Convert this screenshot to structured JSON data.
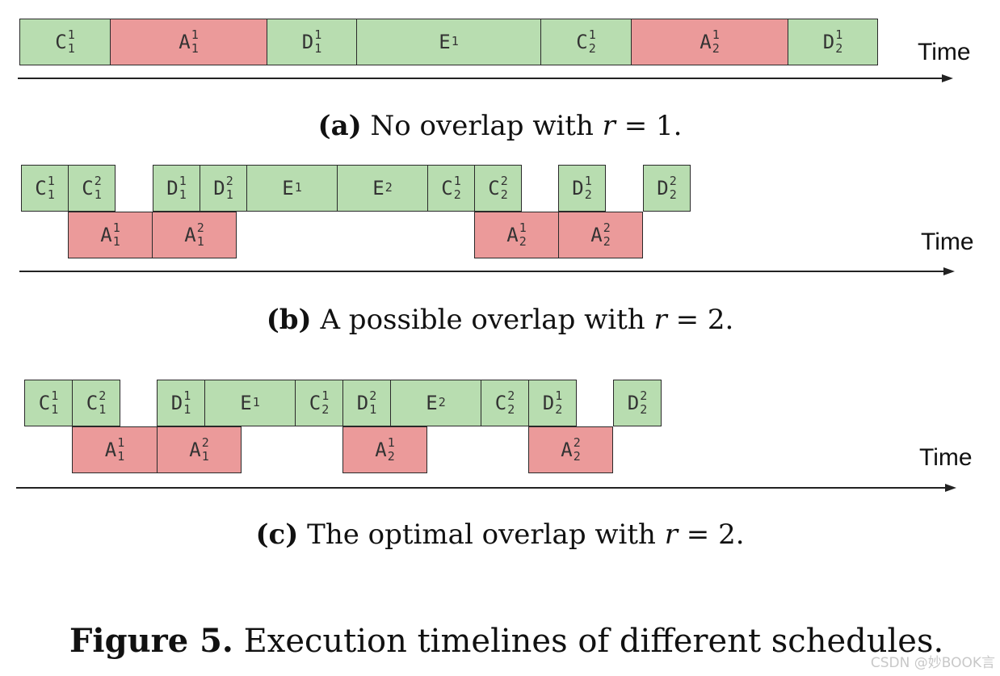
{
  "time_label": "Time",
  "panels": [
    {
      "id": "a",
      "caption": {
        "tag": "(a)",
        "text_before": " No overlap with ",
        "var": "r",
        "text_after": " = 1."
      },
      "blocks": [
        {
          "kind": "C",
          "sup": "1",
          "sub": "1",
          "color": "green"
        },
        {
          "kind": "A",
          "sup": "1",
          "sub": "1",
          "color": "red"
        },
        {
          "kind": "D",
          "sup": "1",
          "sub": "1",
          "color": "green"
        },
        {
          "kind": "E",
          "sup": "1",
          "sub": "",
          "color": "green"
        },
        {
          "kind": "C",
          "sup": "1",
          "sub": "2",
          "color": "green"
        },
        {
          "kind": "A",
          "sup": "1",
          "sub": "2",
          "color": "red"
        },
        {
          "kind": "D",
          "sup": "1",
          "sub": "2",
          "color": "green"
        }
      ]
    },
    {
      "id": "b",
      "caption": {
        "tag": "(b)",
        "text_before": " A possible overlap with ",
        "var": "r",
        "text_after": " = 2."
      },
      "blocks": [
        {
          "kind": "C",
          "sup": "1",
          "sub": "1",
          "color": "green"
        },
        {
          "kind": "C",
          "sup": "2",
          "sub": "1",
          "color": "green"
        },
        {
          "kind": "D",
          "sup": "1",
          "sub": "1",
          "color": "green"
        },
        {
          "kind": "D",
          "sup": "2",
          "sub": "1",
          "color": "green"
        },
        {
          "kind": "E",
          "sup": "1",
          "sub": "",
          "color": "green"
        },
        {
          "kind": "E",
          "sup": "2",
          "sub": "",
          "color": "green"
        },
        {
          "kind": "C",
          "sup": "1",
          "sub": "2",
          "color": "green"
        },
        {
          "kind": "C",
          "sup": "2",
          "sub": "2",
          "color": "green"
        },
        {
          "kind": "D",
          "sup": "1",
          "sub": "2",
          "color": "green"
        },
        {
          "kind": "D",
          "sup": "2",
          "sub": "2",
          "color": "green"
        },
        {
          "kind": "A",
          "sup": "1",
          "sub": "1",
          "color": "red"
        },
        {
          "kind": "A",
          "sup": "2",
          "sub": "1",
          "color": "red"
        },
        {
          "kind": "A",
          "sup": "1",
          "sub": "2",
          "color": "red"
        },
        {
          "kind": "A",
          "sup": "2",
          "sub": "2",
          "color": "red"
        }
      ]
    },
    {
      "id": "c",
      "caption": {
        "tag": "(c)",
        "text_before": " The optimal overlap with ",
        "var": "r",
        "text_after": " = 2."
      },
      "blocks": [
        {
          "kind": "C",
          "sup": "1",
          "sub": "1",
          "color": "green"
        },
        {
          "kind": "C",
          "sup": "2",
          "sub": "1",
          "color": "green"
        },
        {
          "kind": "D",
          "sup": "1",
          "sub": "1",
          "color": "green"
        },
        {
          "kind": "E",
          "sup": "1",
          "sub": "",
          "color": "green"
        },
        {
          "kind": "C",
          "sup": "1",
          "sub": "2",
          "color": "green"
        },
        {
          "kind": "D",
          "sup": "2",
          "sub": "1",
          "color": "green"
        },
        {
          "kind": "E",
          "sup": "2",
          "sub": "",
          "color": "green"
        },
        {
          "kind": "C",
          "sup": "2",
          "sub": "2",
          "color": "green"
        },
        {
          "kind": "D",
          "sup": "1",
          "sub": "2",
          "color": "green"
        },
        {
          "kind": "D",
          "sup": "2",
          "sub": "2",
          "color": "green"
        },
        {
          "kind": "A",
          "sup": "1",
          "sub": "1",
          "color": "red"
        },
        {
          "kind": "A",
          "sup": "2",
          "sub": "1",
          "color": "red"
        },
        {
          "kind": "A",
          "sup": "1",
          "sub": "2",
          "color": "red"
        },
        {
          "kind": "A",
          "sup": "2",
          "sub": "2",
          "color": "red"
        }
      ]
    }
  ],
  "figure_caption": {
    "tag": "Figure 5.",
    "text": " Execution timelines of different schedules."
  },
  "watermark": "CSDN @妙BOOK言",
  "colors": {
    "compute_block": "#b8ddb0",
    "attention_block": "#eb9a9a"
  }
}
